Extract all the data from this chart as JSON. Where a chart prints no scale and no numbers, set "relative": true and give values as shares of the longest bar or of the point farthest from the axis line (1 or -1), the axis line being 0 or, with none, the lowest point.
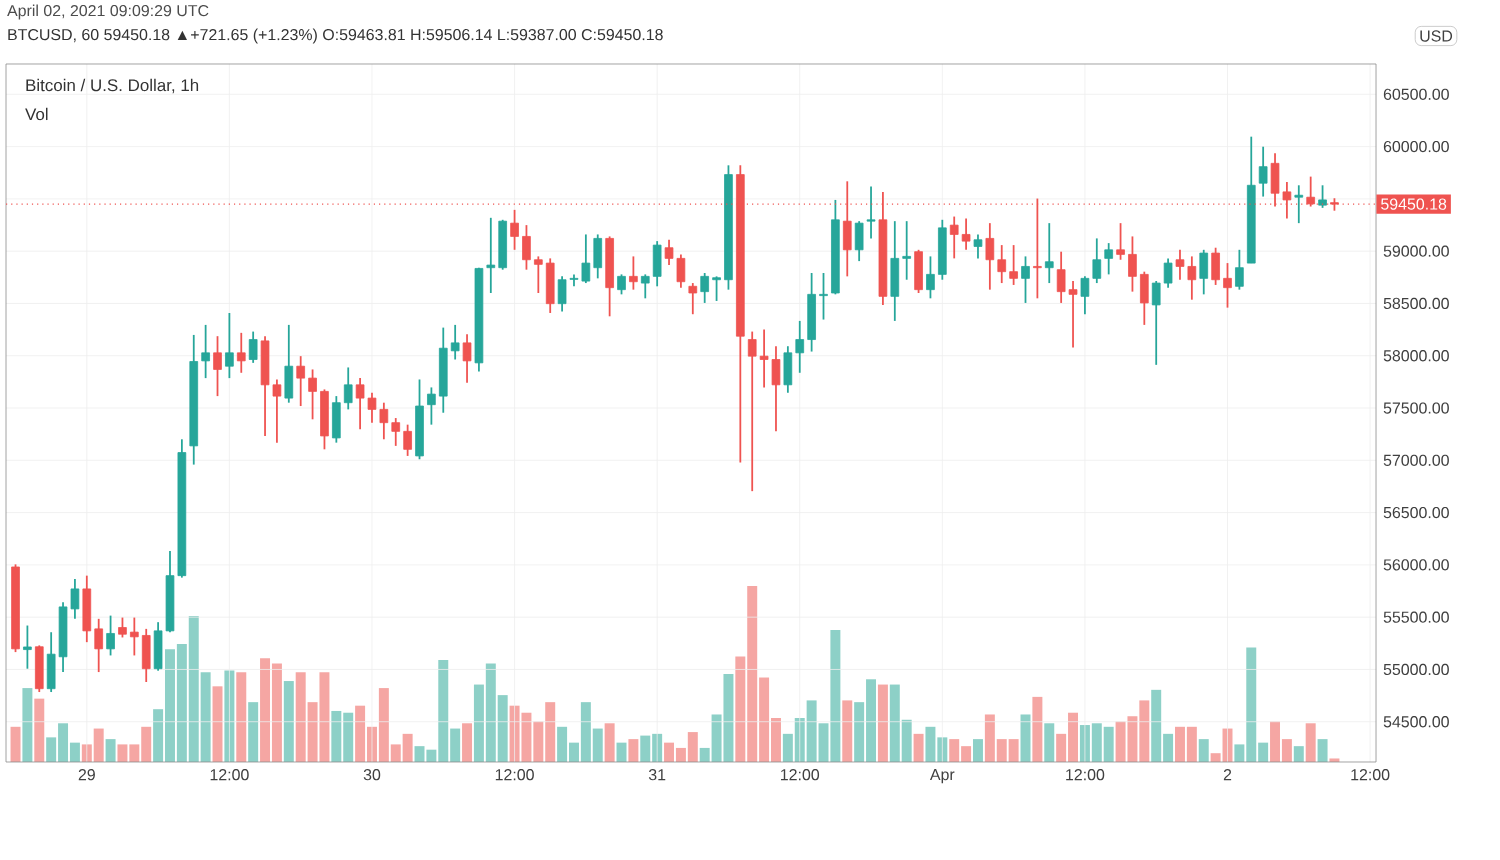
{
  "chart_data": [
    {
      "type": "candlestick",
      "title": "Bitcoin / U.S. Dollar, 1h",
      "subtitle": "BTCUSD, 60  59450.18 ▲+721.65 (+1.23%)  O:59463.81 H:59506.14 L:59387.00 C:59450.18",
      "ylabel": "USD",
      "annotations": [
        "April 02, 2021 09:09:29 UTC"
      ],
      "categories": [
        null,
        null,
        null,
        null,
        null,
        null,
        "29",
        null,
        null,
        null,
        null,
        null,
        null,
        null,
        null,
        null,
        null,
        null,
        "12:00",
        null,
        null,
        null,
        null,
        null,
        null,
        null,
        null,
        null,
        null,
        null,
        "30",
        null,
        null,
        null,
        null,
        null,
        null,
        null,
        null,
        null,
        null,
        null,
        "12:00",
        null,
        null,
        null,
        null,
        null,
        null,
        null,
        null,
        null,
        null,
        null,
        "31",
        null,
        null,
        null,
        null,
        null,
        null,
        null,
        null,
        null,
        null,
        null,
        "12:00",
        null,
        null,
        null,
        null,
        null,
        null,
        null,
        null,
        null,
        null,
        null,
        "Apr",
        null,
        null,
        null,
        null,
        null,
        null,
        null,
        null,
        null,
        null,
        null,
        "12:00",
        null,
        null,
        null,
        null,
        null,
        null,
        null,
        null,
        null,
        null,
        null,
        "2",
        null,
        null,
        null,
        null,
        null,
        null,
        null,
        null,
        null,
        null,
        null,
        "12:00"
      ],
      "ohlc": [
        [
          55980,
          56005,
          55166,
          55197
        ],
        [
          55190,
          55420,
          55007,
          55215
        ],
        [
          55217,
          55230,
          54784,
          54816
        ],
        [
          54816,
          55356,
          54784,
          55146
        ],
        [
          55121,
          55642,
          54975,
          55598
        ],
        [
          55579,
          55865,
          55484,
          55770
        ],
        [
          55770,
          55897,
          55261,
          55369
        ],
        [
          55388,
          55484,
          54975,
          55197
        ],
        [
          55197,
          55515,
          55134,
          55344
        ],
        [
          55401,
          55496,
          55306,
          55337
        ],
        [
          55357,
          55496,
          55134,
          55312
        ],
        [
          55325,
          55388,
          54880,
          55007
        ],
        [
          55007,
          55452,
          54988,
          55369
        ],
        [
          55369,
          56132,
          55356,
          55897
        ],
        [
          55897,
          57201,
          55878,
          57074
        ],
        [
          57138,
          58199,
          56959,
          57945
        ],
        [
          57951,
          58295,
          57786,
          58028
        ],
        [
          58028,
          58187,
          57614,
          57869
        ],
        [
          57900,
          58409,
          57786,
          58028
        ],
        [
          58028,
          58219,
          57837,
          57951
        ],
        [
          57964,
          58231,
          57932,
          58155
        ],
        [
          58142,
          58187,
          57233,
          57722
        ],
        [
          57722,
          57773,
          57169,
          57614
        ],
        [
          57595,
          58295,
          57551,
          57900
        ],
        [
          57900,
          57996,
          57519,
          57786
        ],
        [
          57786,
          57869,
          57392,
          57659
        ],
        [
          57659,
          57678,
          57105,
          57233
        ],
        [
          57214,
          57614,
          57169,
          57551
        ],
        [
          57551,
          57888,
          57487,
          57722
        ],
        [
          57722,
          57786,
          57296,
          57595
        ],
        [
          57595,
          57646,
          57360,
          57487
        ],
        [
          57487,
          57551,
          57201,
          57360
        ],
        [
          57360,
          57404,
          57138,
          57277
        ],
        [
          57277,
          57341,
          57042,
          57105
        ],
        [
          57042,
          57773,
          57010,
          57519
        ],
        [
          57532,
          57697,
          57341,
          57633
        ],
        [
          57614,
          58269,
          57455,
          58072
        ],
        [
          58047,
          58295,
          57964,
          58123
        ],
        [
          58123,
          58206,
          57741,
          57951
        ],
        [
          57932,
          58842,
          57849,
          58835
        ],
        [
          58842,
          59319,
          58600,
          58867
        ],
        [
          58842,
          59300,
          58823,
          59287
        ],
        [
          59268,
          59395,
          59013,
          59141
        ],
        [
          59141,
          59249,
          58823,
          58918
        ],
        [
          58918,
          58950,
          58600,
          58874
        ],
        [
          58886,
          58931,
          58409,
          58498
        ],
        [
          58498,
          58759,
          58422,
          58727
        ],
        [
          58730,
          58778,
          58664,
          58740
        ],
        [
          58714,
          59160,
          58695,
          58886
        ],
        [
          58842,
          59160,
          58740,
          59122
        ],
        [
          59122,
          59141,
          58377,
          58651
        ],
        [
          58632,
          58778,
          58587,
          58759
        ],
        [
          58759,
          58950,
          58632,
          58708
        ],
        [
          58695,
          58778,
          58549,
          58759
        ],
        [
          58759,
          59096,
          58664,
          59058
        ],
        [
          59033,
          59109,
          58867,
          58931
        ],
        [
          58931,
          58969,
          58651,
          58708
        ],
        [
          58664,
          58695,
          58397,
          58600
        ],
        [
          58613,
          58791,
          58505,
          58759
        ],
        [
          58727,
          58759,
          58524,
          58746
        ],
        [
          58727,
          59821,
          58632,
          59732
        ],
        [
          59732,
          59821,
          56978,
          58187
        ],
        [
          58155,
          58231,
          56705,
          57996
        ],
        [
          57996,
          58250,
          57697,
          57964
        ],
        [
          57964,
          58091,
          57277,
          57722
        ],
        [
          57722,
          58091,
          57646,
          58028
        ],
        [
          58028,
          58333,
          57837,
          58155
        ],
        [
          58155,
          58791,
          58040,
          58587
        ],
        [
          58575,
          58791,
          58346,
          58587
        ],
        [
          58600,
          59490,
          58587,
          59300
        ],
        [
          59287,
          59668,
          58759,
          59013
        ],
        [
          59013,
          59287,
          58905,
          59268
        ],
        [
          59287,
          59618,
          59122,
          59300
        ],
        [
          59300,
          59567,
          58486,
          58568
        ],
        [
          58568,
          59287,
          58333,
          58931
        ],
        [
          58931,
          59287,
          58727,
          58950
        ],
        [
          58995,
          59013,
          58600,
          58632
        ],
        [
          58632,
          58950,
          58549,
          58778
        ],
        [
          58778,
          59300,
          58727,
          59223
        ],
        [
          59249,
          59331,
          58931,
          59160
        ],
        [
          59160,
          59312,
          59013,
          59096
        ],
        [
          59045,
          59160,
          58931,
          59109
        ],
        [
          59122,
          59268,
          58632,
          58918
        ],
        [
          58918,
          59058,
          58695,
          58804
        ],
        [
          58804,
          59058,
          58677,
          58740
        ],
        [
          58740,
          58950,
          58505,
          58854
        ],
        [
          58854,
          59503,
          58549,
          58842
        ],
        [
          58842,
          59268,
          58695,
          58899
        ],
        [
          58823,
          58995,
          58505,
          58613
        ],
        [
          58632,
          58715,
          58079,
          58587
        ],
        [
          58568,
          58759,
          58397,
          58740
        ],
        [
          58740,
          59122,
          58695,
          58918
        ],
        [
          58931,
          59077,
          58778,
          59013
        ],
        [
          59013,
          59268,
          58918,
          58969
        ],
        [
          58969,
          59141,
          58613,
          58759
        ],
        [
          58778,
          58804,
          58295,
          58505
        ],
        [
          58486,
          58715,
          57913,
          58695
        ],
        [
          58695,
          58931,
          58651,
          58886
        ],
        [
          58918,
          59013,
          58727,
          58854
        ],
        [
          58854,
          58950,
          58536,
          58727
        ],
        [
          58740,
          59013,
          58587,
          58982
        ],
        [
          58982,
          59033,
          58677,
          58727
        ],
        [
          58740,
          58886,
          58460,
          58651
        ],
        [
          58664,
          59013,
          58632,
          58842
        ],
        [
          58886,
          60095,
          58886,
          59630
        ],
        [
          59650,
          59999,
          59522,
          59808
        ],
        [
          59840,
          59936,
          59427,
          59554
        ],
        [
          59567,
          59662,
          59312,
          59490
        ],
        [
          59516,
          59630,
          59268,
          59535
        ],
        [
          59516,
          59713,
          59427,
          59452
        ],
        [
          59440,
          59630,
          59414,
          59490
        ],
        [
          59463.81,
          59506.14,
          59387,
          59450.18
        ],
        null,
        null,
        null
      ],
      "colors": [
        "#ef5350",
        "#26a69a",
        "#ef5350",
        "#26a69a",
        "#26a69a",
        "#26a69a",
        "#ef5350",
        "#ef5350",
        "#26a69a",
        "#ef5350",
        "#ef5350",
        "#ef5350",
        "#26a69a",
        "#26a69a",
        "#26a69a",
        "#26a69a",
        "#26a69a",
        "#ef5350",
        "#26a69a",
        "#ef5350",
        "#26a69a",
        "#ef5350",
        "#ef5350",
        "#26a69a",
        "#ef5350",
        "#ef5350",
        "#ef5350",
        "#26a69a",
        "#26a69a",
        "#ef5350",
        "#ef5350",
        "#ef5350",
        "#ef5350",
        "#ef5350",
        "#26a69a",
        "#26a69a",
        "#26a69a",
        "#26a69a",
        "#ef5350",
        "#26a69a",
        "#26a69a",
        "#26a69a",
        "#ef5350",
        "#ef5350",
        "#ef5350",
        "#ef5350",
        "#26a69a",
        "#26a69a",
        "#26a69a",
        "#26a69a",
        "#ef5350",
        "#26a69a",
        "#ef5350",
        "#26a69a",
        "#26a69a",
        "#ef5350",
        "#ef5350",
        "#ef5350",
        "#26a69a",
        "#26a69a",
        "#26a69a",
        "#ef5350",
        "#ef5350",
        "#ef5350",
        "#ef5350",
        "#26a69a",
        "#26a69a",
        "#26a69a",
        "#26a69a",
        "#26a69a",
        "#ef5350",
        "#26a69a",
        "#26a69a",
        "#ef5350",
        "#26a69a",
        "#26a69a",
        "#ef5350",
        "#26a69a",
        "#26a69a",
        "#ef5350",
        "#ef5350",
        "#26a69a",
        "#ef5350",
        "#ef5350",
        "#ef5350",
        "#26a69a",
        "#ef5350",
        "#26a69a",
        "#ef5350",
        "#ef5350",
        "#26a69a",
        "#26a69a",
        "#26a69a",
        "#ef5350",
        "#ef5350",
        "#ef5350",
        "#26a69a",
        "#26a69a",
        "#ef5350",
        "#ef5350",
        "#26a69a",
        "#ef5350",
        "#ef5350",
        "#26a69a",
        "#26a69a",
        "#26a69a",
        "#ef5350",
        "#ef5350",
        "#26a69a",
        "#ef5350",
        "#26a69a",
        "#ef5350",
        null,
        null,
        null
      ],
      "ylim": [
        54115,
        60790
      ],
      "yticks": [
        {
          "value": 54500,
          "label": "54500.00"
        },
        {
          "value": 55000,
          "label": "55000.00"
        },
        {
          "value": 55500,
          "label": "55500.00"
        },
        {
          "value": 56000,
          "label": "56000.00"
        },
        {
          "value": 56500,
          "label": "56500.00"
        },
        {
          "value": 57000,
          "label": "57000.00"
        },
        {
          "value": 57500,
          "label": "57500.00"
        },
        {
          "value": 58000,
          "label": "58000.00"
        },
        {
          "value": 58500,
          "label": "58500.00"
        },
        {
          "value": 59000,
          "label": "59000.00"
        },
        {
          "value": 59500,
          "label": null
        },
        {
          "value": 60000,
          "label": "60000.00"
        },
        {
          "value": 60500,
          "label": "60500.00"
        }
      ],
      "grid": true,
      "ref_lines": [
        {
          "axis": "y",
          "value": 59450.18,
          "label": "59450.18",
          "color": "#ef5350",
          "line_style": "dotted"
        }
      ]
    },
    {
      "type": "bar",
      "title": "Vol",
      "relative": true,
      "categories": [
        null,
        null,
        null,
        null,
        null,
        null,
        null,
        null,
        null,
        null,
        null,
        null,
        null,
        null,
        null,
        null,
        null,
        null,
        null,
        null,
        null,
        null,
        null,
        null,
        null,
        null,
        null,
        null,
        null,
        null,
        null,
        null,
        null,
        null,
        null,
        null,
        null,
        null,
        null,
        null,
        null,
        null,
        null,
        null,
        null,
        null,
        null,
        null,
        null,
        null,
        null,
        null,
        null,
        null,
        null,
        null,
        null,
        null,
        null,
        null,
        null,
        null,
        null,
        null,
        null,
        null,
        null,
        null,
        null,
        null,
        null,
        null,
        null,
        null,
        null,
        null,
        null,
        null,
        null,
        null,
        null,
        null,
        null,
        null,
        null,
        null,
        null,
        null,
        null,
        null,
        null,
        null,
        null,
        null,
        null,
        null,
        null,
        null,
        null,
        null,
        null,
        null,
        null,
        null,
        null,
        null,
        null,
        null,
        null,
        null,
        null,
        null,
        null,
        null,
        null
      ],
      "values": [
        0.2,
        0.42,
        0.36,
        0.14,
        0.22,
        0.11,
        0.1,
        0.19,
        0.13,
        0.1,
        0.1,
        0.2,
        0.3,
        0.64,
        0.67,
        0.83,
        0.51,
        0.43,
        0.52,
        0.51,
        0.34,
        0.59,
        0.56,
        0.46,
        0.51,
        0.34,
        0.51,
        0.29,
        0.28,
        0.32,
        0.2,
        0.42,
        0.1,
        0.16,
        0.09,
        0.07,
        0.58,
        0.19,
        0.22,
        0.44,
        0.56,
        0.38,
        0.32,
        0.28,
        0.23,
        0.34,
        0.2,
        0.11,
        0.34,
        0.19,
        0.22,
        0.11,
        0.13,
        0.15,
        0.16,
        0.11,
        0.08,
        0.17,
        0.08,
        0.27,
        0.5,
        0.6,
        1,
        0.48,
        0.25,
        0.16,
        0.25,
        0.35,
        0.22,
        0.75,
        0.35,
        0.34,
        0.47,
        0.44,
        0.44,
        0.24,
        0.16,
        0.2,
        0.14,
        0.13,
        0.09,
        0.13,
        0.27,
        0.13,
        0.13,
        0.27,
        0.37,
        0.22,
        0.16,
        0.28,
        0.21,
        0.22,
        0.2,
        0.23,
        0.26,
        0.35,
        0.41,
        0.16,
        0.2,
        0.2,
        0.13,
        0.05,
        0.19,
        0.1,
        0.65,
        0.11,
        0.23,
        0.13,
        0.09,
        0.22,
        0.13,
        0.02,
        null,
        null,
        null
      ],
      "colors": [
        "#f5a6a3",
        "#8dd0c7",
        "#f5a6a3",
        "#8dd0c7",
        "#8dd0c7",
        "#8dd0c7",
        "#f5a6a3",
        "#f5a6a3",
        "#8dd0c7",
        "#f5a6a3",
        "#f5a6a3",
        "#f5a6a3",
        "#8dd0c7",
        "#8dd0c7",
        "#8dd0c7",
        "#8dd0c7",
        "#8dd0c7",
        "#f5a6a3",
        "#8dd0c7",
        "#f5a6a3",
        "#8dd0c7",
        "#f5a6a3",
        "#f5a6a3",
        "#8dd0c7",
        "#f5a6a3",
        "#f5a6a3",
        "#f5a6a3",
        "#8dd0c7",
        "#8dd0c7",
        "#f5a6a3",
        "#f5a6a3",
        "#f5a6a3",
        "#f5a6a3",
        "#f5a6a3",
        "#8dd0c7",
        "#8dd0c7",
        "#8dd0c7",
        "#8dd0c7",
        "#f5a6a3",
        "#8dd0c7",
        "#8dd0c7",
        "#8dd0c7",
        "#f5a6a3",
        "#f5a6a3",
        "#f5a6a3",
        "#f5a6a3",
        "#8dd0c7",
        "#8dd0c7",
        "#8dd0c7",
        "#8dd0c7",
        "#f5a6a3",
        "#8dd0c7",
        "#f5a6a3",
        "#8dd0c7",
        "#8dd0c7",
        "#f5a6a3",
        "#f5a6a3",
        "#f5a6a3",
        "#8dd0c7",
        "#8dd0c7",
        "#8dd0c7",
        "#f5a6a3",
        "#f5a6a3",
        "#f5a6a3",
        "#f5a6a3",
        "#8dd0c7",
        "#8dd0c7",
        "#8dd0c7",
        "#8dd0c7",
        "#8dd0c7",
        "#f5a6a3",
        "#8dd0c7",
        "#8dd0c7",
        "#f5a6a3",
        "#8dd0c7",
        "#8dd0c7",
        "#f5a6a3",
        "#8dd0c7",
        "#8dd0c7",
        "#f5a6a3",
        "#f5a6a3",
        "#8dd0c7",
        "#f5a6a3",
        "#f5a6a3",
        "#f5a6a3",
        "#8dd0c7",
        "#f5a6a3",
        "#8dd0c7",
        "#f5a6a3",
        "#f5a6a3",
        "#8dd0c7",
        "#8dd0c7",
        "#8dd0c7",
        "#f5a6a3",
        "#f5a6a3",
        "#f5a6a3",
        "#8dd0c7",
        "#8dd0c7",
        "#f5a6a3",
        "#f5a6a3",
        "#8dd0c7",
        "#f5a6a3",
        "#f5a6a3",
        "#8dd0c7",
        "#8dd0c7",
        "#8dd0c7",
        "#f5a6a3",
        "#f5a6a3",
        "#8dd0c7",
        "#f5a6a3",
        "#8dd0c7",
        "#f5a6a3",
        null,
        null,
        null
      ]
    }
  ]
}
